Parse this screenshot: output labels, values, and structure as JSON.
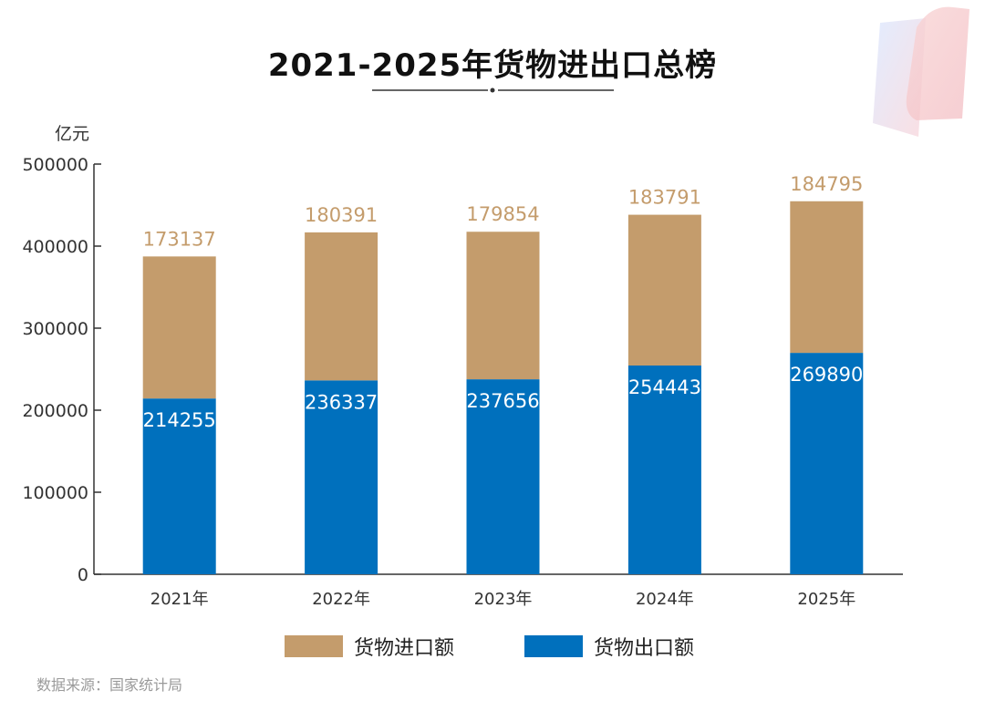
{
  "title": "2021-2025年货物进出口总榜",
  "unit_label": "亿元",
  "source": "数据来源：国家统计局",
  "colors": {
    "import": "#c49c6c",
    "export": "#0070bd",
    "import_label": "#c49c6c",
    "export_label": "#ffffff"
  },
  "legend": [
    {
      "label": "货物进口额",
      "series": "import"
    },
    {
      "label": "货物出口额",
      "series": "export"
    }
  ],
  "chart_data": {
    "type": "bar",
    "stacked": true,
    "title": "2021-2025年货物进出口总榜",
    "ylabel": "亿元",
    "xlabel": "",
    "ylim": [
      0,
      500000
    ],
    "yticks": [
      "0",
      "100000",
      "200000",
      "300000",
      "400000",
      "500000"
    ],
    "categories": [
      "2021年",
      "2022年",
      "2023年",
      "2024年",
      "2025年"
    ],
    "series": [
      {
        "name": "货物出口额",
        "key": "export",
        "values": [
          214255,
          236337,
          237656,
          254443,
          269890
        ]
      },
      {
        "name": "货物进口额",
        "key": "import",
        "values": [
          173137,
          180391,
          179854,
          183791,
          184795
        ]
      }
    ],
    "grid": false,
    "legend_position": "bottom"
  }
}
